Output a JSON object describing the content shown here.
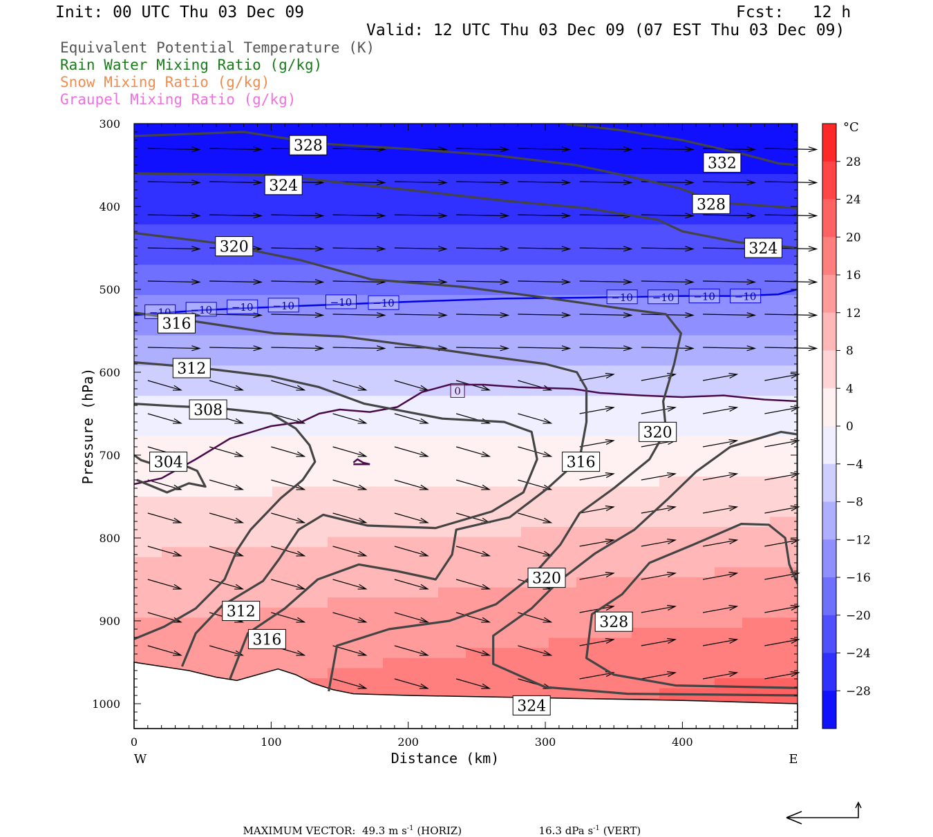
{
  "header": {
    "init": "Init: 00 UTC Thu 03 Dec 09",
    "fcst": "Fcst:   12 h",
    "valid": "Valid: 12 UTC Thu 03 Dec 09 (07 EST Thu 03 Dec 09)"
  },
  "legend": [
    {
      "text": "Equivalent Potential Temperature (K)",
      "color": "#555555"
    },
    {
      "text": "Rain Water Mixing Ratio (g/kg)",
      "color": "#1a7a1a"
    },
    {
      "text": "Snow Mixing Ratio (g/kg)",
      "color": "#f08c4e"
    },
    {
      "text": "Graupel Mixing Ratio (g/kg)",
      "color": "#f070e0"
    }
  ],
  "footer": {
    "label": "MAXIMUM VECTOR:",
    "horiz_value": "49.3 m s",
    "horiz_exp": "-1",
    "horiz_tag": "(HORIZ)",
    "vert_value": "16.3 dPa s",
    "vert_exp": "-1",
    "vert_tag": "(VERT)"
  },
  "chart_data": {
    "type": "cross-section",
    "xlabel": "Distance (km)",
    "ylabel": "Pressure (hPa)",
    "xlim": [
      0,
      484
    ],
    "ylim": [
      300,
      1030
    ],
    "x_ticks": [
      0,
      100,
      200,
      300,
      400
    ],
    "y_ticks": [
      300,
      400,
      500,
      600,
      700,
      800,
      900,
      1000
    ],
    "x_end_labels": [
      "W",
      "E"
    ],
    "colorbar": {
      "unit": "°C",
      "ticks": [
        28,
        24,
        20,
        16,
        12,
        8,
        4,
        0,
        -4,
        -8,
        -12,
        -16,
        -20,
        -24,
        -28
      ],
      "range": [
        -32,
        32
      ],
      "cold_color": "#0000ff",
      "warm_color": "#ff1a1a"
    },
    "temperature_field": {
      "profile_p": [
        300,
        400,
        500,
        600,
        650,
        700,
        800,
        900,
        1000
      ],
      "profile_t": [
        -32,
        -26,
        -17,
        -7,
        -2,
        1,
        7,
        12,
        16
      ],
      "east_warming_degC_at_1000": 6
    },
    "theta_e_contours": [
      {
        "value": 304,
        "points": [
          [
            0,
            700
          ],
          [
            5,
            706
          ],
          [
            20,
            714
          ],
          [
            36,
            712
          ],
          [
            46,
            719
          ],
          [
            52,
            738
          ],
          [
            40,
            734
          ],
          [
            24,
            745
          ],
          [
            2,
            730
          ]
        ]
      },
      {
        "value": 308,
        "points": [
          [
            0,
            638
          ],
          [
            30,
            641
          ],
          [
            60,
            643
          ],
          [
            100,
            650
          ],
          [
            118,
            668
          ],
          [
            128,
            688
          ],
          [
            132,
            708
          ],
          [
            123,
            730
          ],
          [
            107,
            752
          ],
          [
            85,
            790
          ],
          [
            75,
            815
          ],
          [
            66,
            850
          ],
          [
            45,
            885
          ],
          [
            22,
            907
          ],
          [
            0,
            922
          ]
        ]
      },
      {
        "value": 312,
        "points": [
          [
            0,
            588
          ],
          [
            50,
            595
          ],
          [
            100,
            605
          ],
          [
            135,
            618
          ],
          [
            168,
            638
          ],
          [
            225,
            656
          ],
          [
            270,
            660
          ],
          [
            290,
            672
          ],
          [
            294,
            705
          ],
          [
            284,
            745
          ],
          [
            261,
            768
          ],
          [
            220,
            788
          ],
          [
            170,
            785
          ],
          [
            138,
            772
          ],
          [
            120,
            790
          ],
          [
            106,
            825
          ],
          [
            94,
            852
          ],
          [
            64,
            882
          ],
          [
            45,
            915
          ],
          [
            35,
            955
          ]
        ]
      },
      {
        "value": 316,
        "points": [
          [
            0,
            528
          ],
          [
            50,
            540
          ],
          [
            102,
            553
          ],
          [
            153,
            557
          ],
          [
            204,
            568
          ],
          [
            255,
            580
          ],
          [
            300,
            590
          ],
          [
            323,
            600
          ],
          [
            330,
            620
          ],
          [
            330,
            660
          ],
          [
            325,
            705
          ],
          [
            301,
            741
          ],
          [
            274,
            775
          ],
          [
            235,
            790
          ],
          [
            232,
            820
          ],
          [
            220,
            850
          ],
          [
            192,
            840
          ],
          [
            164,
            832
          ],
          [
            134,
            850
          ],
          [
            110,
            885
          ],
          [
            83,
            915
          ],
          [
            70,
            970
          ]
        ]
      },
      {
        "value": 320,
        "points": [
          [
            0,
            432
          ],
          [
            60,
            444
          ],
          [
            122,
            465
          ],
          [
            173,
            488
          ],
          [
            240,
            497
          ],
          [
            300,
            510
          ],
          [
            355,
            523
          ],
          [
            388,
            530
          ],
          [
            399,
            553
          ],
          [
            394,
            590
          ],
          [
            386,
            635
          ],
          [
            388,
            670
          ],
          [
            376,
            705
          ],
          [
            350,
            740
          ],
          [
            325,
            770
          ],
          [
            311,
            808
          ],
          [
            291,
            845
          ],
          [
            264,
            880
          ],
          [
            230,
            900
          ],
          [
            186,
            910
          ],
          [
            148,
            930
          ],
          [
            142,
            985
          ]
        ]
      },
      {
        "value": 324,
        "points": [
          [
            0,
            360
          ],
          [
            100,
            362
          ],
          [
            200,
            380
          ],
          [
            270,
            393
          ],
          [
            330,
            402
          ],
          [
            382,
            416
          ],
          [
            400,
            430
          ],
          [
            440,
            443
          ],
          [
            484,
            450
          ],
          [
            484,
            675
          ],
          [
            472,
            672
          ],
          [
            435,
            690
          ],
          [
            410,
            720
          ],
          [
            390,
            752
          ],
          [
            365,
            790
          ],
          [
            336,
            819
          ],
          [
            310,
            852
          ],
          [
            290,
            885
          ],
          [
            262,
            918
          ],
          [
            262,
            952
          ],
          [
            300,
            980
          ],
          [
            360,
            988
          ],
          [
            484,
            990
          ]
        ]
      },
      {
        "value": 328,
        "points": [
          [
            0,
            315
          ],
          [
            80,
            310
          ],
          [
            135,
            324
          ],
          [
            195,
            330
          ],
          [
            262,
            338
          ],
          [
            322,
            350
          ],
          [
            362,
            364
          ],
          [
            398,
            378
          ],
          [
            425,
            395
          ],
          [
            484,
            402
          ],
          [
            484,
            855
          ],
          [
            478,
            832
          ],
          [
            475,
            800
          ],
          [
            463,
            784
          ],
          [
            443,
            783
          ],
          [
            408,
            808
          ],
          [
            376,
            830
          ],
          [
            356,
            868
          ],
          [
            334,
            892
          ],
          [
            330,
            945
          ],
          [
            350,
            965
          ],
          [
            395,
            978
          ],
          [
            484,
            981
          ]
        ]
      },
      {
        "value": 332,
        "points": [
          [
            315,
            300
          ],
          [
            355,
            308
          ],
          [
            400,
            320
          ],
          [
            445,
            337
          ],
          [
            470,
            348
          ],
          [
            484,
            350
          ]
        ]
      }
    ],
    "theta_e_labels": [
      {
        "value": 328,
        "x": 127,
        "p": 326
      },
      {
        "value": 332,
        "x": 429,
        "p": 347
      },
      {
        "value": 324,
        "x": 109,
        "p": 374
      },
      {
        "value": 328,
        "x": 421,
        "p": 397
      },
      {
        "value": 320,
        "x": 73,
        "p": 448
      },
      {
        "value": 324,
        "x": 459,
        "p": 450
      },
      {
        "value": 316,
        "x": 31,
        "p": 541
      },
      {
        "value": 312,
        "x": 42,
        "p": 595
      },
      {
        "value": 308,
        "x": 54,
        "p": 645
      },
      {
        "value": 320,
        "x": 382,
        "p": 672
      },
      {
        "value": 304,
        "x": 25,
        "p": 708
      },
      {
        "value": 316,
        "x": 326,
        "p": 708
      },
      {
        "value": 320,
        "x": 301,
        "p": 848
      },
      {
        "value": 312,
        "x": 78,
        "p": 888
      },
      {
        "value": 328,
        "x": 350,
        "p": 901
      },
      {
        "value": 316,
        "x": 97,
        "p": 922
      },
      {
        "value": 324,
        "x": 290,
        "p": 1002
      }
    ],
    "isotherms": [
      {
        "value": -10,
        "color": "#0000e6",
        "points": [
          [
            0,
            531
          ],
          [
            50,
            525
          ],
          [
            120,
            520
          ],
          [
            200,
            515
          ],
          [
            270,
            511
          ],
          [
            330,
            510
          ],
          [
            400,
            508
          ],
          [
            440,
            508
          ],
          [
            470,
            506
          ],
          [
            484,
            500
          ]
        ]
      },
      {
        "value": 0,
        "color": "#4a0a4a",
        "points": [
          [
            0,
            735
          ],
          [
            20,
            728
          ],
          [
            45,
            705
          ],
          [
            70,
            680
          ],
          [
            100,
            665
          ],
          [
            122,
            660
          ],
          [
            135,
            650
          ],
          [
            150,
            645
          ],
          [
            172,
            648
          ],
          [
            192,
            642
          ],
          [
            210,
            624
          ],
          [
            230,
            615
          ],
          [
            255,
            615
          ],
          [
            280,
            618
          ],
          [
            320,
            620
          ],
          [
            340,
            625
          ],
          [
            370,
            628
          ],
          [
            400,
            630
          ],
          [
            430,
            628
          ],
          [
            460,
            633
          ],
          [
            484,
            635
          ]
        ]
      },
      {
        "value": 0,
        "color": "#4a0a4a",
        "points": [
          [
            160,
            709
          ],
          [
            163,
            705
          ],
          [
            167,
            709
          ],
          [
            172,
            711
          ],
          [
            160,
            711
          ]
        ]
      }
    ],
    "isotherm_labels": [
      {
        "value": "-10",
        "x": 19,
        "p": 527
      },
      {
        "value": "-10",
        "x": 49,
        "p": 524
      },
      {
        "value": "-10",
        "x": 79,
        "p": 521
      },
      {
        "value": "-10",
        "x": 109,
        "p": 519
      },
      {
        "value": "-10",
        "x": 151,
        "p": 515
      },
      {
        "value": "-10",
        "x": 182,
        "p": 516
      },
      {
        "value": "-10",
        "x": 356,
        "p": 509
      },
      {
        "value": "-10",
        "x": 386,
        "p": 509
      },
      {
        "value": "-10",
        "x": 416,
        "p": 508
      },
      {
        "value": "-10",
        "x": 446,
        "p": 508
      },
      {
        "value": "0",
        "x": 236,
        "p": 622
      }
    ],
    "surface_pressure": [
      [
        0,
        950
      ],
      [
        20,
        955
      ],
      [
        40,
        960
      ],
      [
        60,
        968
      ],
      [
        75,
        972
      ],
      [
        90,
        965
      ],
      [
        105,
        958
      ],
      [
        118,
        965
      ],
      [
        130,
        975
      ],
      [
        145,
        983
      ],
      [
        160,
        988
      ],
      [
        200,
        990
      ],
      [
        300,
        993
      ],
      [
        400,
        996
      ],
      [
        484,
        1000
      ]
    ],
    "wind_vector_ref": {
      "u_ms": 49.3,
      "w_dPa": 16.3
    }
  }
}
